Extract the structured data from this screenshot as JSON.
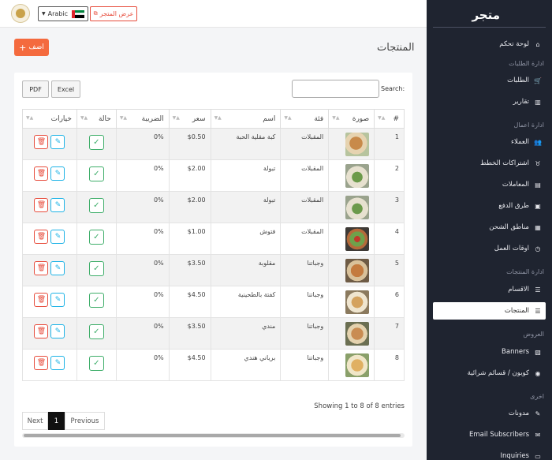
{
  "topbar": {
    "language": "Arabic",
    "view_store": "عرض المتجر"
  },
  "sidebar": {
    "title": "متجر",
    "sections": [
      {
        "label": "ادارة الطلبات"
      },
      {
        "label": "ادارة اعمال"
      },
      {
        "label": "ادارة المنتجات"
      },
      {
        "label": "العروض"
      },
      {
        "label": "اخرى"
      }
    ],
    "items": [
      {
        "label": "لوحة تحكم",
        "icon": "home-icon"
      },
      {
        "label": "الطلبات",
        "icon": "cart-icon"
      },
      {
        "label": "تقارير",
        "icon": "chart-icon"
      },
      {
        "label": "العملاء",
        "icon": "users-icon"
      },
      {
        "label": "اشتراكات الخطط",
        "icon": "plan-icon"
      },
      {
        "label": "المعاملات",
        "icon": "file-icon"
      },
      {
        "label": "طرق الدفع",
        "icon": "wallet-icon"
      },
      {
        "label": "مناطق الشحن",
        "icon": "map-icon"
      },
      {
        "label": "اوقات العمل",
        "icon": "clock-icon"
      },
      {
        "label": "الاقسام",
        "icon": "list-icon"
      },
      {
        "label": "المنتجات",
        "icon": "list-icon"
      },
      {
        "label": "Banners",
        "icon": "image-icon"
      },
      {
        "label": "كوبون / قسائم شرائية",
        "icon": "coupon-icon"
      },
      {
        "label": "مدونات",
        "icon": "blog-icon"
      },
      {
        "label": "Email Subscribers",
        "icon": "mail-icon"
      },
      {
        "label": "Inquiries",
        "icon": "inbox-icon"
      }
    ]
  },
  "main": {
    "page_title": "المنتجات",
    "add_label": "اضف",
    "export": {
      "pdf": "PDF",
      "excel": "Excel"
    },
    "search_label": "Search:",
    "table": {
      "headers": [
        "#",
        "صورة",
        "فئة",
        "اسم",
        "سعر",
        "الضريبة",
        "حالة",
        "خيارات"
      ],
      "rows": [
        {
          "num": "1",
          "category": "المقبلات",
          "name": "كبة مقلية الحبة",
          "price": "$0.50",
          "tax": "0%"
        },
        {
          "num": "2",
          "category": "المقبلات",
          "name": "تبولة",
          "price": "$2.00",
          "tax": "0%"
        },
        {
          "num": "3",
          "category": "المقبلات",
          "name": "تبولة",
          "price": "$2.00",
          "tax": "0%"
        },
        {
          "num": "4",
          "category": "المقبلات",
          "name": "فتوش",
          "price": "$1.00",
          "tax": "0%"
        },
        {
          "num": "5",
          "category": "وجباتنا",
          "name": "مقلوبة",
          "price": "$3.50",
          "tax": "0%"
        },
        {
          "num": "6",
          "category": "وجباتنا",
          "name": "كفتة بالطحينية",
          "price": "$4.50",
          "tax": "0%"
        },
        {
          "num": "7",
          "category": "وجباتنا",
          "name": "مندي",
          "price": "$3.50",
          "tax": "0%"
        },
        {
          "num": "8",
          "category": "وجباتنا",
          "name": "برياني هندي",
          "price": "$4.50",
          "tax": "0%"
        }
      ]
    },
    "info": "Showing 1 to 8 of 8 entries",
    "pagination": {
      "previous": "Previous",
      "current": "1",
      "next": "Next"
    }
  }
}
